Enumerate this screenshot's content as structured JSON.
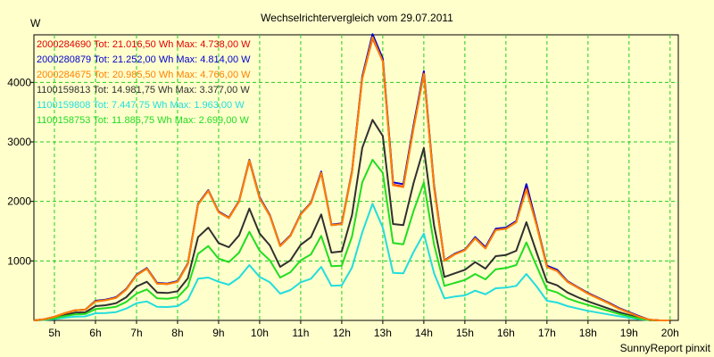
{
  "chart_data": {
    "type": "line",
    "title": "Wechselrichtervergleich vom 29.07.2011",
    "ylabel": "W",
    "xlabel": "",
    "footer": "SunnyReport pinxit",
    "grid": true,
    "xlim": [
      4.5,
      20.2
    ],
    "ylim": [
      0,
      4800
    ],
    "x_ticks": [
      5,
      6,
      7,
      8,
      9,
      10,
      11,
      12,
      13,
      14,
      15,
      16,
      17,
      18,
      19,
      20
    ],
    "x_tick_labels": [
      "5h",
      "6h",
      "7h",
      "8h",
      "9h",
      "10h",
      "11h",
      "12h",
      "13h",
      "14h",
      "15h",
      "16h",
      "17h",
      "18h",
      "19h",
      "20h"
    ],
    "y_ticks": [
      1000,
      2000,
      3000,
      4000
    ],
    "y_tick_labels": [
      "1000",
      "2000",
      "3000",
      "4000"
    ],
    "x": [
      4.5,
      4.75,
      5,
      5.25,
      5.5,
      5.75,
      6,
      6.25,
      6.5,
      6.75,
      7,
      7.25,
      7.5,
      7.75,
      8,
      8.25,
      8.5,
      8.75,
      9,
      9.25,
      9.5,
      9.75,
      10,
      10.25,
      10.5,
      10.75,
      11,
      11.25,
      11.5,
      11.75,
      12,
      12.25,
      12.5,
      12.75,
      13,
      13.25,
      13.5,
      13.75,
      14,
      14.25,
      14.5,
      14.75,
      15,
      15.25,
      15.5,
      15.75,
      16,
      16.25,
      16.5,
      16.75,
      17,
      17.25,
      17.5,
      17.75,
      18,
      18.25,
      18.5,
      18.75,
      19,
      19.25,
      19.5,
      19.75,
      20
    ],
    "series": [
      {
        "name": "2000284690",
        "legend": "2000284690 Tot: 21.016,50 Wh Max: 4.738,00 W",
        "color": "#e00000",
        "values": [
          0,
          20,
          60,
          120,
          170,
          180,
          320,
          340,
          380,
          520,
          760,
          870,
          620,
          610,
          650,
          950,
          1950,
          2180,
          1820,
          1720,
          2000,
          2680,
          2050,
          1760,
          1250,
          1420,
          1780,
          1970,
          2480,
          1600,
          1620,
          2490,
          4070,
          4740,
          4360,
          2280,
          2250,
          3240,
          4150,
          2230,
          1000,
          1110,
          1180,
          1380,
          1210,
          1520,
          1540,
          1650,
          2220,
          1600,
          900,
          830,
          650,
          550,
          450,
          370,
          290,
          200,
          130,
          60,
          10,
          0,
          0
        ]
      },
      {
        "name": "2000280879",
        "legend": "2000280879 Tot: 21.252,00 Wh Max: 4.814,00 W",
        "color": "#0000d0",
        "values": [
          0,
          20,
          60,
          120,
          170,
          180,
          330,
          350,
          390,
          530,
          770,
          880,
          630,
          620,
          660,
          960,
          1960,
          2190,
          1830,
          1730,
          2010,
          2700,
          2070,
          1770,
          1260,
          1430,
          1790,
          1980,
          2500,
          1610,
          1630,
          2510,
          4100,
          4810,
          4400,
          2320,
          2290,
          3280,
          4190,
          2260,
          1010,
          1120,
          1190,
          1400,
          1230,
          1540,
          1560,
          1670,
          2290,
          1620,
          920,
          850,
          660,
          560,
          460,
          380,
          300,
          210,
          140,
          70,
          10,
          0,
          0
        ]
      },
      {
        "name": "2000284675",
        "legend": "2000284675 Tot: 20.985,50 Wh Max: 4.766,00 W",
        "color": "#ff8000",
        "values": [
          0,
          20,
          60,
          120,
          170,
          180,
          320,
          340,
          380,
          520,
          760,
          870,
          620,
          610,
          650,
          950,
          1950,
          2180,
          1820,
          1720,
          2000,
          2690,
          2050,
          1760,
          1250,
          1420,
          1780,
          1970,
          2480,
          1600,
          1620,
          2490,
          4060,
          4760,
          4350,
          2270,
          2240,
          3230,
          4140,
          2220,
          1000,
          1110,
          1180,
          1380,
          1210,
          1520,
          1540,
          1650,
          2200,
          1590,
          900,
          830,
          650,
          550,
          450,
          370,
          290,
          200,
          130,
          60,
          10,
          0,
          0
        ]
      },
      {
        "name": "1100159813",
        "legend": "1100159813 Tot: 14.981,75 Wh Max: 3.377,00 W",
        "color": "#303030",
        "values": [
          0,
          15,
          45,
          90,
          130,
          135,
          240,
          255,
          290,
          390,
          570,
          650,
          470,
          460,
          490,
          710,
          1400,
          1560,
          1300,
          1230,
          1430,
          1880,
          1460,
          1260,
          900,
          1010,
          1270,
          1400,
          1780,
          1140,
          1160,
          1770,
          2900,
          3370,
          3100,
          1620,
          1600,
          2310,
          2900,
          1590,
          730,
          790,
          850,
          980,
          870,
          1080,
          1100,
          1170,
          1650,
          1140,
          650,
          590,
          470,
          390,
          320,
          260,
          200,
          140,
          90,
          40,
          5,
          0,
          0
        ]
      },
      {
        "name": "1100159808",
        "legend": "1100159808 Tot: 7.447,75 Wh Max: 1.963,00 W",
        "color": "#22dddd",
        "values": [
          0,
          8,
          22,
          45,
          65,
          68,
          120,
          125,
          140,
          200,
          290,
          320,
          230,
          225,
          240,
          350,
          700,
          720,
          650,
          600,
          720,
          930,
          730,
          640,
          450,
          510,
          640,
          700,
          900,
          580,
          590,
          890,
          1480,
          1960,
          1560,
          800,
          790,
          1150,
          1460,
          790,
          370,
          400,
          420,
          500,
          440,
          540,
          550,
          580,
          780,
          570,
          330,
          300,
          240,
          200,
          160,
          130,
          100,
          70,
          45,
          20,
          3,
          0,
          0
        ]
      },
      {
        "name": "1100158753",
        "legend": "1100158753 Tot: 11.886,75 Wh Max: 2.699,00 W",
        "color": "#22dd22",
        "values": [
          0,
          12,
          36,
          72,
          100,
          108,
          190,
          205,
          230,
          310,
          450,
          520,
          370,
          365,
          390,
          570,
          1120,
          1250,
          1040,
          980,
          1140,
          1490,
          1170,
          1010,
          720,
          810,
          1010,
          1110,
          1420,
          910,
          920,
          1410,
          2320,
          2700,
          2480,
          1300,
          1280,
          1840,
          2320,
          1270,
          580,
          630,
          680,
          780,
          690,
          860,
          880,
          930,
          1310,
          910,
          520,
          470,
          370,
          310,
          260,
          210,
          160,
          110,
          70,
          30,
          4,
          0,
          0
        ]
      }
    ]
  }
}
